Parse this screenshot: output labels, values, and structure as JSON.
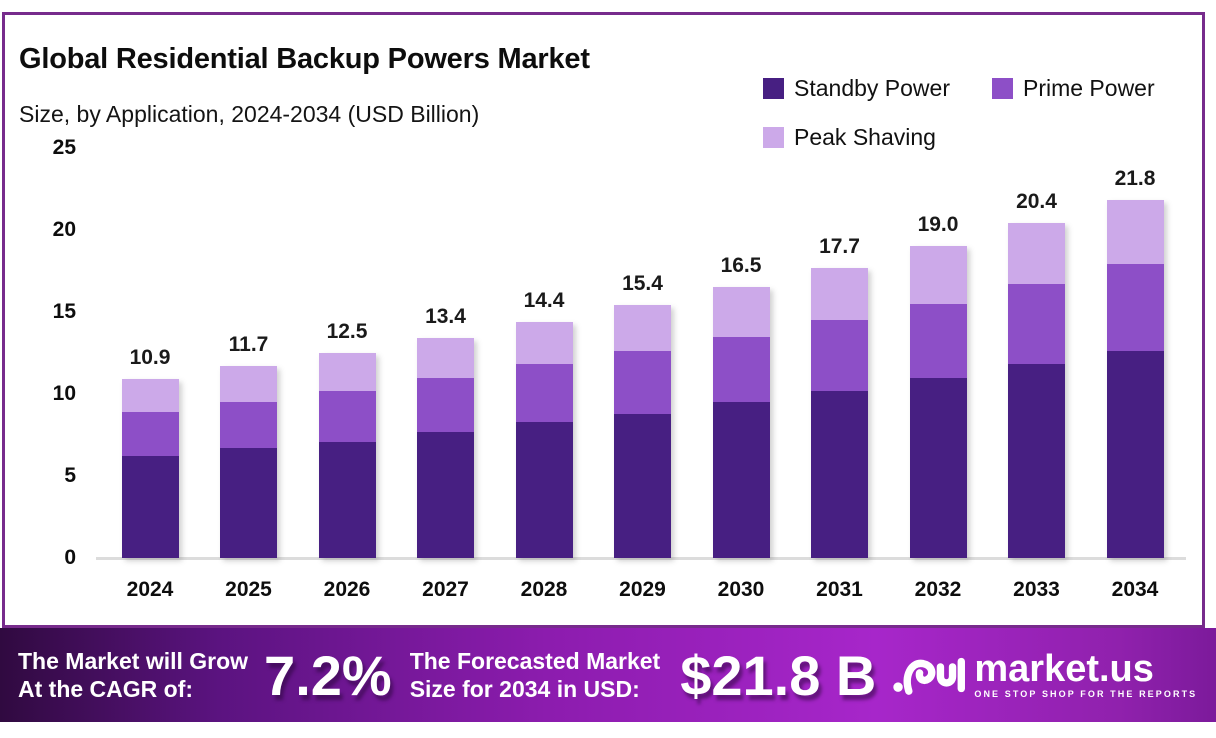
{
  "title": "Global Residential Backup Powers Market",
  "subtitle": "Size, by Application, 2024-2034 (USD Billion)",
  "legend": [
    {
      "label": "Standby Power",
      "color": "#471f82"
    },
    {
      "label": "Prime Power",
      "color": "#8d4fc7"
    },
    {
      "label": "Peak Shaving",
      "color": "#cca9e9"
    }
  ],
  "chart_data": {
    "type": "bar",
    "stacked": true,
    "title": "Global Residential Backup Powers Market Size, by Application, 2024-2034 (USD Billion)",
    "categories": [
      "2024",
      "2025",
      "2026",
      "2027",
      "2028",
      "2029",
      "2030",
      "2031",
      "2032",
      "2033",
      "2034"
    ],
    "series": [
      {
        "name": "Standby Power",
        "color": "#471f82",
        "values": [
          6.2,
          6.7,
          7.1,
          7.7,
          8.3,
          8.8,
          9.5,
          10.2,
          11.0,
          11.8,
          12.6
        ]
      },
      {
        "name": "Prime Power",
        "color": "#8d4fc7",
        "values": [
          2.7,
          2.8,
          3.1,
          3.3,
          3.5,
          3.8,
          4.0,
          4.3,
          4.5,
          4.9,
          5.3
        ]
      },
      {
        "name": "Peak Shaving",
        "color": "#cca9e9",
        "values": [
          2.0,
          2.2,
          2.3,
          2.4,
          2.6,
          2.8,
          3.0,
          3.2,
          3.5,
          3.7,
          3.9
        ]
      }
    ],
    "totals": [
      10.9,
      11.7,
      12.5,
      13.4,
      14.4,
      15.4,
      16.5,
      17.7,
      19.0,
      20.4,
      21.8
    ],
    "total_labels": [
      "10.9",
      "11.7",
      "12.5",
      "13.4",
      "14.4",
      "15.4",
      "16.5",
      "17.7",
      "19.0",
      "20.4",
      "21.8"
    ],
    "xlabel": "",
    "ylabel": "",
    "ylim": [
      0,
      25
    ],
    "yticks": [
      "0",
      "5",
      "10",
      "15",
      "20",
      "25"
    ],
    "grid": false,
    "legend_position": "top-right"
  },
  "footer": {
    "cagr_label_line1": "The Market will Grow",
    "cagr_label_line2": "At the CAGR of:",
    "cagr_value": "7.2%",
    "forecast_label_line1": "The Forecasted Market",
    "forecast_label_line2": "Size for 2034 in USD:",
    "forecast_value": "$21.8 B",
    "brand": {
      "name": "market.us",
      "tagline": "ONE STOP SHOP FOR THE REPORTS"
    }
  },
  "colors": {
    "card_border": "#772b8c",
    "axis_line": "#dcdcdc",
    "banner_gradient_start": "#300a40",
    "banner_gradient_bright": "#a726ca",
    "banner_gradient_end": "#7c1a9b"
  }
}
